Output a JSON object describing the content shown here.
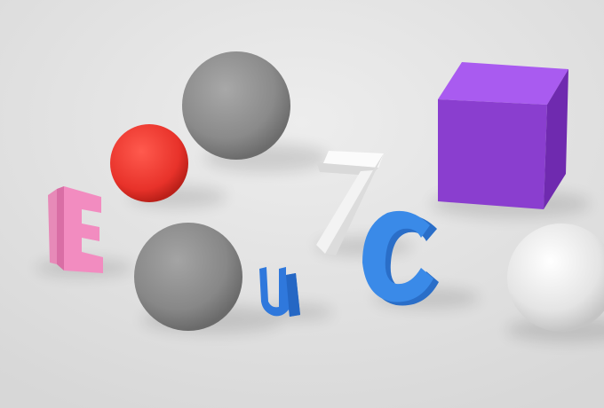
{
  "scene": {
    "background": "#e4e4e4",
    "objects": [
      {
        "name": "gray-sphere-top",
        "kind": "sphere",
        "color": "#8c8c8c"
      },
      {
        "name": "red-sphere",
        "kind": "sphere",
        "color": "#e8322a"
      },
      {
        "name": "gray-sphere-bottom",
        "kind": "sphere",
        "color": "#8a8a8a"
      },
      {
        "name": "white-sphere",
        "kind": "sphere",
        "color": "#e2e2e2"
      },
      {
        "name": "purple-cube",
        "kind": "cube",
        "color": "#9440d6"
      },
      {
        "name": "letter-e",
        "kind": "letter",
        "glyph": "E",
        "color": "#f28cc0"
      },
      {
        "name": "letter-u",
        "kind": "letter",
        "glyph": "u",
        "color": "#2f78dc"
      },
      {
        "name": "digit-7",
        "kind": "letter",
        "glyph": "7",
        "color": "#efefef"
      },
      {
        "name": "letter-c",
        "kind": "letter",
        "glyph": "C",
        "color": "#3a86e6"
      }
    ]
  }
}
